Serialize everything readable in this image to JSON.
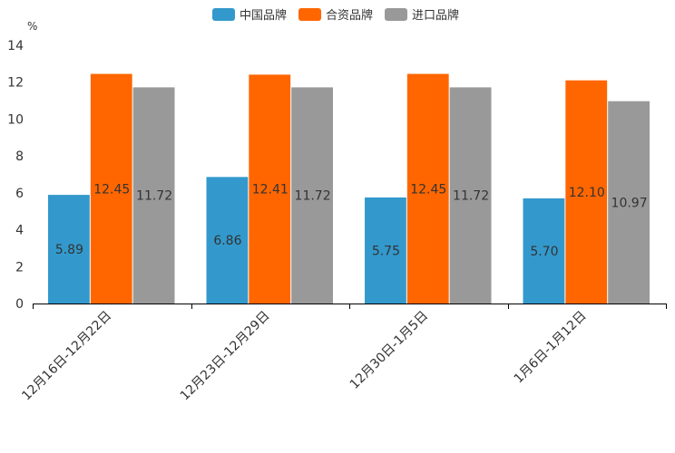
{
  "chart_data": {
    "type": "bar",
    "title": "",
    "ylabel": "%",
    "xlabel": "",
    "ylim": [
      0,
      14
    ],
    "yticks": [
      0,
      2,
      4,
      6,
      8,
      10,
      12,
      14
    ],
    "grid": false,
    "legend_position": "top-center",
    "categories": [
      "12月16日-12月22日",
      "12月23日-12月29日",
      "12月30日-1月5日",
      "1月6日-1月12日"
    ],
    "series": [
      {
        "name": "中国品牌",
        "color": "#3399CC",
        "values": [
          5.89,
          6.86,
          5.75,
          5.7
        ]
      },
      {
        "name": "合资品牌",
        "color": "#FF6600",
        "values": [
          12.45,
          12.41,
          12.45,
          12.1
        ]
      },
      {
        "name": "进口品牌",
        "color": "#999999",
        "values": [
          11.72,
          11.72,
          11.72,
          10.97
        ]
      }
    ]
  }
}
